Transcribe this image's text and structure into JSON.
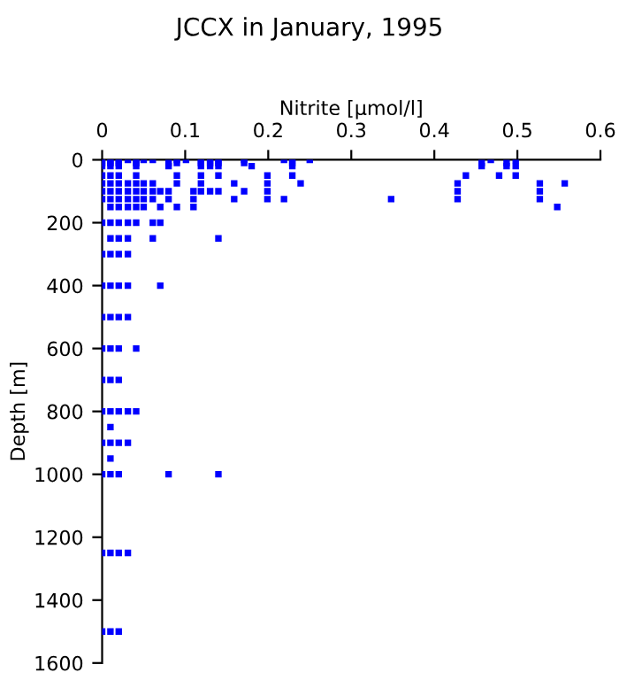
{
  "chart_data": {
    "type": "scatter",
    "title": "JCCX in January, 1995",
    "xlabel": "Nitrite [µmol/l]",
    "ylabel": "Depth [m]",
    "xlim": [
      0,
      0.6
    ],
    "xticks": [
      0,
      0.1,
      0.2,
      0.3,
      0.4,
      0.5,
      0.6
    ],
    "ylim": [
      1600,
      0
    ],
    "yticks": [
      0,
      200,
      400,
      600,
      800,
      1000,
      1200,
      1400,
      1600
    ],
    "grid": false,
    "legend": false,
    "marker": "square",
    "series": [
      {
        "color": "#0000ff",
        "x": [
          0,
          0.01,
          0.02,
          0.031,
          0.041,
          0.05,
          0.061,
          0.09,
          0.101,
          0.119,
          0.13,
          0.14,
          0.171,
          0.219,
          0.229,
          0.25,
          0.468,
          0.498,
          0,
          0.01,
          0.02,
          0.041,
          0.08,
          0.09,
          0.119,
          0.13,
          0.14,
          0.171,
          0.229,
          0.457,
          0.487,
          0,
          0.01,
          0.02,
          0.041,
          0.08,
          0.119,
          0.13,
          0.14,
          0.18,
          0.229,
          0.457,
          0.487,
          0.498,
          0,
          0.01,
          0.02,
          0.041,
          0.09,
          0.119,
          0.14,
          0.199,
          0.229,
          0.438,
          0.478,
          0.498,
          0,
          0.01,
          0.02,
          0.031,
          0.041,
          0.05,
          0.061,
          0.09,
          0.119,
          0.159,
          0.199,
          0.239,
          0.428,
          0.527,
          0.557,
          0,
          0.01,
          0.02,
          0.031,
          0.041,
          0.05,
          0.061,
          0.07,
          0.08,
          0.11,
          0.119,
          0.13,
          0.14,
          0.171,
          0.199,
          0.428,
          0.527,
          0,
          0.01,
          0.02,
          0.031,
          0.041,
          0.05,
          0.061,
          0.08,
          0.11,
          0.159,
          0.199,
          0.219,
          0.348,
          0.428,
          0.527,
          0.01,
          0.02,
          0.031,
          0.041,
          0.05,
          0.07,
          0.09,
          0.11,
          0.548,
          0,
          0.01,
          0.02,
          0.031,
          0.041,
          0.061,
          0.07,
          0.01,
          0.02,
          0.031,
          0.061,
          0.14,
          0,
          0.01,
          0.02,
          0.031,
          0,
          0.01,
          0.02,
          0.031,
          0.07,
          0,
          0.01,
          0.02,
          0.031,
          0,
          0.01,
          0.02,
          0.041,
          0,
          0.01,
          0.02,
          0,
          0.01,
          0.02,
          0.031,
          0.041,
          0.01,
          0,
          0.01,
          0.02,
          0.031,
          0.01,
          0,
          0.01,
          0.02,
          0.08,
          0.14,
          0,
          0.01,
          0.02,
          0.031,
          0,
          0.01,
          0.02
        ],
        "values": [
          0,
          0,
          0,
          0,
          0,
          0,
          0,
          0,
          0,
          0,
          0,
          0,
          0,
          0,
          0,
          0,
          0,
          0,
          10,
          10,
          10,
          10,
          10,
          10,
          10,
          10,
          10,
          10,
          10,
          10,
          10,
          20,
          20,
          20,
          20,
          20,
          20,
          20,
          20,
          20,
          20,
          20,
          20,
          20,
          50,
          50,
          50,
          50,
          50,
          50,
          50,
          50,
          50,
          50,
          50,
          50,
          75,
          75,
          75,
          75,
          75,
          75,
          75,
          75,
          75,
          75,
          75,
          75,
          75,
          75,
          75,
          100,
          100,
          100,
          100,
          100,
          100,
          100,
          100,
          100,
          100,
          100,
          100,
          100,
          100,
          100,
          100,
          100,
          125,
          125,
          125,
          125,
          125,
          125,
          125,
          125,
          125,
          125,
          125,
          125,
          125,
          125,
          125,
          150,
          150,
          150,
          150,
          150,
          150,
          150,
          150,
          150,
          200,
          200,
          200,
          200,
          200,
          200,
          200,
          250,
          250,
          250,
          250,
          250,
          300,
          300,
          300,
          300,
          400,
          400,
          400,
          400,
          400,
          500,
          500,
          500,
          500,
          600,
          600,
          600,
          600,
          700,
          700,
          700,
          800,
          800,
          800,
          800,
          800,
          850,
          900,
          900,
          900,
          900,
          950,
          1000,
          1000,
          1000,
          1000,
          1000,
          1250,
          1250,
          1250,
          1250,
          1500,
          1500,
          1500
        ]
      }
    ]
  }
}
